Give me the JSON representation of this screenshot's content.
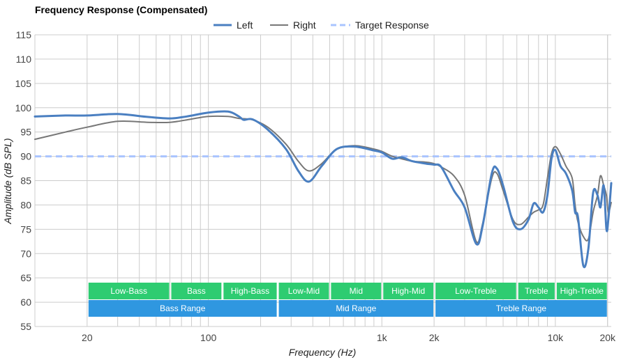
{
  "chart_data": {
    "type": "line",
    "title": "Frequency Response (Compensated)",
    "xlabel": "Frequency (Hz)",
    "ylabel": "Amplitude (dB SPL)",
    "xscale": "log",
    "xlim": [
      10,
      21000
    ],
    "ylim": [
      55,
      115
    ],
    "yticks": [
      55,
      60,
      65,
      70,
      75,
      80,
      85,
      90,
      95,
      100,
      105,
      110,
      115
    ],
    "xticks": [
      {
        "value": 20,
        "label": "20"
      },
      {
        "value": 100,
        "label": "100"
      },
      {
        "value": 1000,
        "label": "1k"
      },
      {
        "value": 2000,
        "label": "2k"
      },
      {
        "value": 10000,
        "label": "10k"
      },
      {
        "value": 20000,
        "label": "20k"
      }
    ],
    "grid": true,
    "legend_position": "top-center",
    "series": [
      {
        "name": "Left",
        "color": "#4a7fc1",
        "style": "solid",
        "points": [
          [
            10,
            98.2
          ],
          [
            15,
            98.4
          ],
          [
            20,
            98.4
          ],
          [
            30,
            98.7
          ],
          [
            45,
            98.1
          ],
          [
            60,
            97.8
          ],
          [
            75,
            98.2
          ],
          [
            100,
            99.0
          ],
          [
            130,
            99.2
          ],
          [
            150,
            98.2
          ],
          [
            160,
            97.5
          ],
          [
            180,
            97.6
          ],
          [
            220,
            95.5
          ],
          [
            280,
            91.5
          ],
          [
            330,
            87.0
          ],
          [
            380,
            84.8
          ],
          [
            450,
            88.0
          ],
          [
            550,
            91.5
          ],
          [
            700,
            92.0
          ],
          [
            900,
            91.2
          ],
          [
            1000,
            90.8
          ],
          [
            1150,
            89.5
          ],
          [
            1300,
            89.8
          ],
          [
            1500,
            89.0
          ],
          [
            1800,
            88.5
          ],
          [
            2000,
            88.3
          ],
          [
            2200,
            87.8
          ],
          [
            2600,
            83.0
          ],
          [
            3000,
            79.5
          ],
          [
            3500,
            72.0
          ],
          [
            3800,
            75.5
          ],
          [
            4300,
            86.5
          ],
          [
            4600,
            87.5
          ],
          [
            5000,
            84.0
          ],
          [
            5700,
            76.5
          ],
          [
            6300,
            75.0
          ],
          [
            7000,
            77.0
          ],
          [
            7500,
            80.3
          ],
          [
            8000,
            79.5
          ],
          [
            8500,
            78.5
          ],
          [
            9000,
            82.0
          ],
          [
            9500,
            89.5
          ],
          [
            10000,
            91.3
          ],
          [
            10700,
            88.0
          ],
          [
            11500,
            86.5
          ],
          [
            12500,
            83.0
          ],
          [
            13000,
            78.5
          ],
          [
            13500,
            77.5
          ],
          [
            14500,
            67.5
          ],
          [
            15500,
            71.0
          ],
          [
            16500,
            82.5
          ],
          [
            17500,
            82.0
          ],
          [
            18200,
            79.5
          ],
          [
            19000,
            84.0
          ],
          [
            19700,
            75.0
          ],
          [
            20200,
            77.0
          ],
          [
            21000,
            84.5
          ]
        ]
      },
      {
        "name": "Right",
        "color": "#777777",
        "style": "solid",
        "points": [
          [
            10,
            93.5
          ],
          [
            15,
            95.0
          ],
          [
            20,
            96.0
          ],
          [
            30,
            97.2
          ],
          [
            45,
            97.0
          ],
          [
            60,
            97.0
          ],
          [
            75,
            97.5
          ],
          [
            100,
            98.2
          ],
          [
            130,
            98.2
          ],
          [
            150,
            97.8
          ],
          [
            180,
            97.5
          ],
          [
            220,
            96.0
          ],
          [
            280,
            92.5
          ],
          [
            330,
            89.0
          ],
          [
            380,
            87.0
          ],
          [
            450,
            88.5
          ],
          [
            550,
            91.5
          ],
          [
            700,
            92.2
          ],
          [
            900,
            91.5
          ],
          [
            1000,
            91.0
          ],
          [
            1150,
            90.0
          ],
          [
            1300,
            89.5
          ],
          [
            1500,
            89.0
          ],
          [
            1800,
            88.8
          ],
          [
            2000,
            88.5
          ],
          [
            2200,
            87.8
          ],
          [
            2600,
            86.0
          ],
          [
            3000,
            82.0
          ],
          [
            3500,
            72.5
          ],
          [
            3800,
            76.0
          ],
          [
            4300,
            85.5
          ],
          [
            4600,
            86.5
          ],
          [
            5000,
            83.0
          ],
          [
            5700,
            77.0
          ],
          [
            6300,
            76.0
          ],
          [
            7000,
            77.5
          ],
          [
            7500,
            78.5
          ],
          [
            8000,
            79.0
          ],
          [
            8500,
            80.0
          ],
          [
            9000,
            85.5
          ],
          [
            9500,
            90.5
          ],
          [
            10000,
            92.0
          ],
          [
            10700,
            90.5
          ],
          [
            11500,
            88.0
          ],
          [
            12500,
            85.5
          ],
          [
            13000,
            80.0
          ],
          [
            13500,
            76.5
          ],
          [
            14500,
            73.5
          ],
          [
            15500,
            73.0
          ],
          [
            16500,
            78.5
          ],
          [
            17500,
            82.0
          ],
          [
            18200,
            86.0
          ],
          [
            19000,
            84.0
          ],
          [
            19700,
            82.0
          ],
          [
            20200,
            78.5
          ],
          [
            21000,
            80.5
          ]
        ]
      },
      {
        "name": "Target Response",
        "color": "#a9c4ff",
        "style": "dashed",
        "points": [
          [
            10,
            90
          ],
          [
            21000,
            90
          ]
        ]
      }
    ],
    "bands": [
      {
        "label": "Low-Bass",
        "from": 20,
        "to": 60,
        "row": 1,
        "color": "#2ecc71"
      },
      {
        "label": "Bass",
        "from": 60,
        "to": 120,
        "row": 1,
        "color": "#2ecc71"
      },
      {
        "label": "High-Bass",
        "from": 120,
        "to": 250,
        "row": 1,
        "color": "#2ecc71"
      },
      {
        "label": "Low-Mid",
        "from": 250,
        "to": 500,
        "row": 1,
        "color": "#2ecc71"
      },
      {
        "label": "Mid",
        "from": 500,
        "to": 1000,
        "row": 1,
        "color": "#2ecc71"
      },
      {
        "label": "High-Mid",
        "from": 1000,
        "to": 2000,
        "row": 1,
        "color": "#2ecc71"
      },
      {
        "label": "Low-Treble",
        "from": 2000,
        "to": 6000,
        "row": 1,
        "color": "#2ecc71"
      },
      {
        "label": "Treble",
        "from": 6000,
        "to": 10000,
        "row": 1,
        "color": "#2ecc71"
      },
      {
        "label": "High-Treble",
        "from": 10000,
        "to": 20000,
        "row": 1,
        "color": "#2ecc71"
      },
      {
        "label": "Bass Range",
        "from": 20,
        "to": 250,
        "row": 2,
        "color": "#2f97e0"
      },
      {
        "label": "Mid Range",
        "from": 250,
        "to": 2000,
        "row": 2,
        "color": "#2f97e0"
      },
      {
        "label": "Treble Range",
        "from": 2000,
        "to": 20000,
        "row": 2,
        "color": "#2f97e0"
      }
    ]
  }
}
